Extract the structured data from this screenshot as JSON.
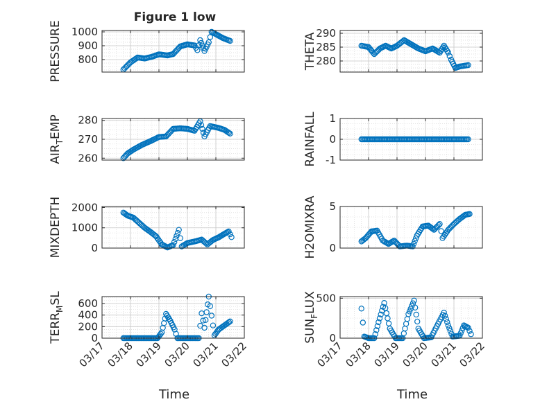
{
  "chart_data": {
    "type": "scatter",
    "title": "Figure 1 low",
    "xlabel": "Time",
    "x_ticks": [
      "03/17",
      "03/18",
      "03/19",
      "03/20",
      "03/21",
      "03/22"
    ],
    "x_domain": [
      17.0,
      22.0
    ],
    "marker": "circle-open",
    "color": "#0072BD",
    "subplots": [
      {
        "id": "pressure",
        "ylabel": "PRESSURE",
        "ylim": [
          710,
          1010
        ],
        "yticks": [
          {
            "v": 800,
            "t": "800"
          },
          {
            "v": 900,
            "t": "900"
          },
          {
            "v": 1000,
            "t": "1000"
          }
        ],
        "key_points": [
          [
            17.75,
            728
          ],
          [
            18.0,
            780
          ],
          [
            18.25,
            815
          ],
          [
            18.5,
            808
          ],
          [
            18.75,
            820
          ],
          [
            19.0,
            838
          ],
          [
            19.3,
            830
          ],
          [
            19.5,
            840
          ],
          [
            19.75,
            895
          ],
          [
            20.0,
            910
          ],
          [
            20.25,
            902
          ],
          [
            20.35,
            868
          ],
          [
            20.45,
            940
          ],
          [
            20.6,
            862
          ],
          [
            20.75,
            925
          ],
          [
            20.85,
            1000
          ],
          [
            21.25,
            955
          ],
          [
            21.5,
            935
          ]
        ]
      },
      {
        "id": "theta",
        "ylabel": "THETA",
        "ylim": [
          276,
          291
        ],
        "yticks": [
          {
            "v": 280,
            "t": "280"
          },
          {
            "v": 285,
            "t": "285"
          },
          {
            "v": 290,
            "t": "290"
          }
        ],
        "key_points": [
          [
            17.75,
            285.5
          ],
          [
            18.0,
            285.0
          ],
          [
            18.2,
            282.5
          ],
          [
            18.4,
            284.5
          ],
          [
            18.6,
            285.5
          ],
          [
            18.8,
            284.5
          ],
          [
            19.0,
            285.5
          ],
          [
            19.25,
            287.5
          ],
          [
            19.5,
            286.0
          ],
          [
            19.75,
            284.5
          ],
          [
            20.0,
            283.5
          ],
          [
            20.25,
            284.5
          ],
          [
            20.5,
            283.0
          ],
          [
            20.65,
            285.5
          ],
          [
            20.8,
            283.0
          ],
          [
            20.9,
            280.5
          ],
          [
            21.05,
            277.5
          ],
          [
            21.2,
            278.0
          ],
          [
            21.5,
            278.5
          ]
        ]
      },
      {
        "id": "air_temp",
        "ylabel": "AIR",
        "ylabel_sub": "T",
        "ylabel_suffix": "EMP",
        "ylim": [
          259,
          281
        ],
        "yticks": [
          {
            "v": 260,
            "t": "260"
          },
          {
            "v": 270,
            "t": "270"
          },
          {
            "v": 280,
            "t": "280"
          }
        ],
        "key_points": [
          [
            17.75,
            260
          ],
          [
            17.9,
            262.5
          ],
          [
            18.1,
            264.5
          ],
          [
            18.4,
            267
          ],
          [
            18.7,
            269
          ],
          [
            19.0,
            271.2
          ],
          [
            19.25,
            271.5
          ],
          [
            19.5,
            275.5
          ],
          [
            19.75,
            275.8
          ],
          [
            20.0,
            275.5
          ],
          [
            20.25,
            274.5
          ],
          [
            20.45,
            279.5
          ],
          [
            20.6,
            271.5
          ],
          [
            20.8,
            277
          ],
          [
            21.1,
            276
          ],
          [
            21.3,
            275
          ],
          [
            21.5,
            273
          ]
        ]
      },
      {
        "id": "rainfall",
        "ylabel": "RAINFALL",
        "ylim": [
          -1,
          1
        ],
        "yticks": [
          {
            "v": -1,
            "t": "-1"
          },
          {
            "v": 0,
            "t": "0"
          },
          {
            "v": 1,
            "t": "1"
          }
        ],
        "key_points": [
          [
            17.75,
            0
          ],
          [
            21.5,
            0
          ]
        ]
      },
      {
        "id": "mixdepth",
        "ylabel": "MIXDEPTH",
        "ylim": [
          0,
          2050
        ],
        "yticks": [
          {
            "v": 0,
            "t": "0"
          },
          {
            "v": 1000,
            "t": "1000"
          },
          {
            "v": 2000,
            "t": "2000"
          }
        ],
        "key_points": [
          [
            17.75,
            1750
          ],
          [
            17.9,
            1600
          ],
          [
            18.1,
            1500
          ],
          [
            18.3,
            1250
          ],
          [
            18.5,
            1000
          ],
          [
            18.7,
            800
          ],
          [
            18.9,
            580
          ],
          [
            19.1,
            180
          ],
          [
            19.3,
            30
          ],
          [
            19.5,
            150
          ],
          [
            19.7,
            900
          ],
          [
            19.8,
            80
          ],
          [
            20.0,
            250
          ],
          [
            20.3,
            340
          ],
          [
            20.5,
            420
          ],
          [
            20.7,
            180
          ],
          [
            20.9,
            400
          ],
          [
            21.1,
            530
          ],
          [
            21.3,
            700
          ],
          [
            21.45,
            820
          ],
          [
            21.55,
            540
          ]
        ]
      },
      {
        "id": "h2omixra",
        "ylabel": "H2OMIXRA",
        "ylim": [
          0,
          5
        ],
        "yticks": [
          {
            "v": 0,
            "t": "0"
          },
          {
            "v": 5,
            "t": "5"
          }
        ],
        "key_points": [
          [
            17.75,
            0.8
          ],
          [
            17.9,
            1.2
          ],
          [
            18.1,
            2.0
          ],
          [
            18.3,
            2.1
          ],
          [
            18.5,
            0.9
          ],
          [
            18.7,
            0.5
          ],
          [
            18.9,
            0.9
          ],
          [
            19.1,
            0.2
          ],
          [
            19.35,
            0.3
          ],
          [
            19.55,
            0.2
          ],
          [
            19.7,
            1.5
          ],
          [
            19.9,
            2.6
          ],
          [
            20.1,
            2.7
          ],
          [
            20.3,
            2.2
          ],
          [
            20.5,
            2.9
          ],
          [
            20.6,
            1.2
          ],
          [
            20.8,
            2.2
          ],
          [
            21.0,
            2.9
          ],
          [
            21.2,
            3.5
          ],
          [
            21.4,
            4.0
          ],
          [
            21.55,
            4.1
          ]
        ]
      },
      {
        "id": "terr_msl",
        "ylabel": "TERR",
        "ylabel_sub": "M",
        "ylabel_suffix": "SL",
        "ylim": [
          0,
          720
        ],
        "yticks": [
          {
            "v": 0,
            "t": "0"
          },
          {
            "v": 200,
            "t": "200"
          },
          {
            "v": 400,
            "t": "400"
          },
          {
            "v": 600,
            "t": "600"
          }
        ],
        "key_points": [
          [
            17.75,
            0
          ],
          [
            18.95,
            0
          ],
          [
            19.1,
            100
          ],
          [
            19.25,
            420
          ],
          [
            19.4,
            300
          ],
          [
            19.55,
            150
          ],
          [
            19.65,
            0
          ],
          [
            20.4,
            0
          ],
          [
            20.5,
            430
          ],
          [
            20.6,
            180
          ],
          [
            20.75,
            720
          ],
          [
            20.85,
            390
          ],
          [
            20.95,
            50
          ],
          [
            21.1,
            150
          ],
          [
            21.3,
            220
          ],
          [
            21.5,
            290
          ]
        ]
      },
      {
        "id": "sun_flux",
        "ylabel": "SUN",
        "ylabel_sub": "F",
        "ylabel_suffix": "LUX",
        "ylim": [
          0,
          520
        ],
        "yticks": [
          {
            "v": 0,
            "t": "0"
          },
          {
            "v": 500,
            "t": "500"
          }
        ],
        "key_points": [
          [
            17.75,
            370
          ],
          [
            17.85,
            20
          ],
          [
            18.0,
            0
          ],
          [
            18.2,
            0
          ],
          [
            18.35,
            200
          ],
          [
            18.55,
            440
          ],
          [
            18.75,
            120
          ],
          [
            18.95,
            0
          ],
          [
            19.2,
            0
          ],
          [
            19.4,
            300
          ],
          [
            19.6,
            470
          ],
          [
            19.75,
            120
          ],
          [
            19.95,
            0
          ],
          [
            20.2,
            10
          ],
          [
            20.4,
            150
          ],
          [
            20.65,
            320
          ],
          [
            20.8,
            160
          ],
          [
            20.95,
            20
          ],
          [
            21.2,
            30
          ],
          [
            21.35,
            160
          ],
          [
            21.5,
            130
          ],
          [
            21.6,
            50
          ]
        ]
      }
    ]
  }
}
